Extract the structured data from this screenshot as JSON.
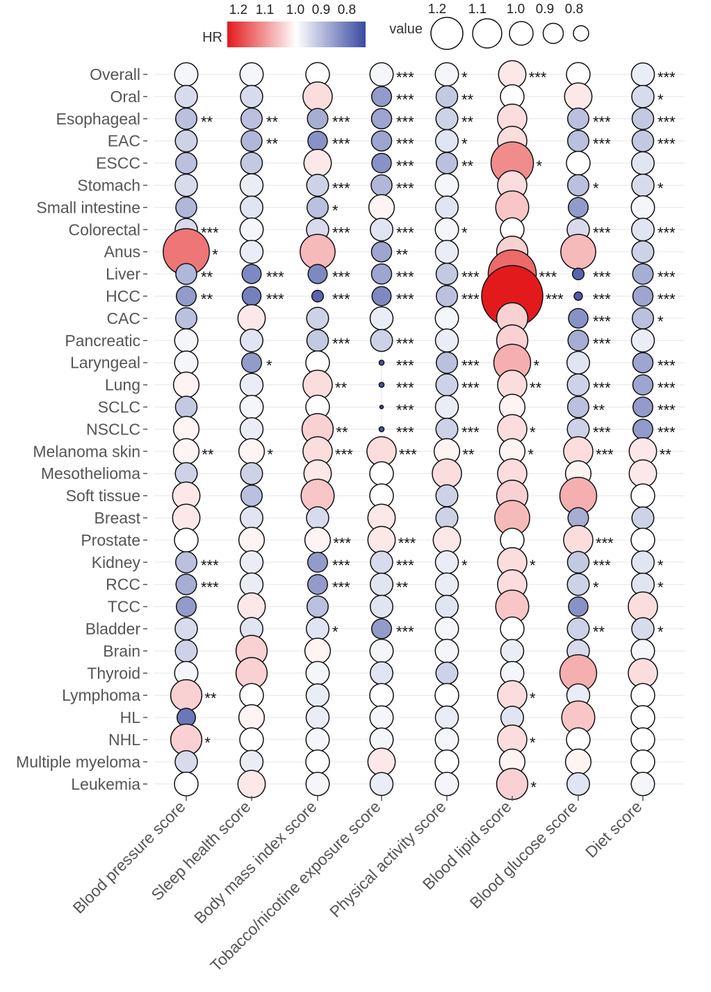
{
  "chart_data": {
    "type": "bubble-heatmap",
    "legend": {
      "color_title": "HR",
      "color_tick_labels": [
        "1.2",
        "1.1",
        "1.0",
        "0.9",
        "0.8"
      ],
      "size_title": "value",
      "size_values": [
        1.2,
        1.1,
        1.0,
        0.9,
        0.8
      ],
      "size_tick_labels": [
        "1.2",
        "1.1",
        "1.0",
        "0.9",
        "0.8"
      ],
      "colors": {
        "high": "#e31a1c",
        "mid": "#ffffff",
        "low": "#3a4aa0"
      }
    },
    "columns": [
      "Blood pressure score",
      "Sleep health score",
      "Body mass index score",
      "Tobacco/nicotine exposure score",
      "Physical activity score",
      "Blood lipid score",
      "Blood glucose score",
      "Diet score"
    ],
    "rows": [
      "Overall",
      "Oral",
      "Esophageal",
      "EAC",
      "ESCC",
      "Stomach",
      "Small intestine",
      "Colorectal",
      "Anus",
      "Liver",
      "HCC",
      "CAC",
      "Pancreatic",
      "Laryngeal",
      "Lung",
      "SCLC",
      "NSCLC",
      "Melanoma skin",
      "Mesothelioma",
      "Soft tissue",
      "Breast",
      "Prostate",
      "Kidney",
      "RCC",
      "TCC",
      "Bladder",
      "Brain",
      "Thyroid",
      "Lymphoma",
      "HL",
      "NHL",
      "Multiple myeloma",
      "Leukemia"
    ],
    "series": [
      {
        "name": "Blood pressure score",
        "hr": [
          0.99,
          0.96,
          0.93,
          0.95,
          0.93,
          0.96,
          0.92,
          0.96,
          1.12,
          0.92,
          0.89,
          0.93,
          0.99,
          0.99,
          1.01,
          0.94,
          1.01,
          1.01,
          0.95,
          1.02,
          1.02,
          1.0,
          0.93,
          0.91,
          0.89,
          0.96,
          0.95,
          0.99,
          1.04,
          0.85,
          1.04,
          0.96,
          1.0
        ],
        "sig": [
          "",
          "",
          "**",
          "",
          "",
          "",
          "",
          "***",
          "*",
          "**",
          "**",
          "",
          "",
          "",
          "",
          "",
          "",
          "**",
          "",
          "",
          "",
          "",
          "***",
          "***",
          "",
          "",
          "",
          "",
          "**",
          "",
          "*",
          "",
          ""
        ]
      },
      {
        "name": "Sleep health score",
        "hr": [
          0.99,
          0.96,
          0.93,
          0.92,
          0.94,
          0.98,
          0.97,
          0.99,
          0.98,
          0.87,
          0.86,
          1.02,
          0.97,
          0.89,
          0.98,
          0.99,
          0.98,
          1.01,
          0.95,
          0.93,
          0.97,
          1.01,
          0.98,
          0.98,
          1.02,
          0.97,
          1.04,
          1.04,
          1.0,
          1.01,
          1.0,
          0.98,
          1.02
        ],
        "sig": [
          "",
          "",
          "**",
          "**",
          "",
          "",
          "",
          "",
          "",
          "***",
          "***",
          "",
          "",
          "*",
          "",
          "",
          "",
          "*",
          "",
          "",
          "",
          "",
          "",
          "",
          "",
          "",
          "",
          "",
          "",
          "",
          "",
          "",
          ""
        ]
      },
      {
        "name": "Body mass index score",
        "hr": [
          1.0,
          1.03,
          0.91,
          0.88,
          1.02,
          0.95,
          0.93,
          0.96,
          1.06,
          0.87,
          0.83,
          0.95,
          0.94,
          1.0,
          1.03,
          1.0,
          1.04,
          1.03,
          1.02,
          1.05,
          0.96,
          1.01,
          0.89,
          0.89,
          0.93,
          0.97,
          1.01,
          0.99,
          0.98,
          0.98,
          0.99,
          1.0,
          0.99
        ],
        "sig": [
          "",
          "",
          "***",
          "***",
          "",
          "***",
          "*",
          "***",
          "",
          "***",
          "***",
          "",
          "***",
          "",
          "**",
          "",
          "**",
          "***",
          "",
          "",
          "",
          "***",
          "***",
          "***",
          "",
          "*",
          "",
          "",
          "",
          "",
          "",
          "",
          ""
        ]
      },
      {
        "name": "Tobacco/nicotine exposure score",
        "hr": [
          0.99,
          0.89,
          0.9,
          0.9,
          0.88,
          0.92,
          1.01,
          0.97,
          0.9,
          0.9,
          0.87,
          0.98,
          0.95,
          0.81,
          0.81,
          0.8,
          0.81,
          1.03,
          1.0,
          1.0,
          1.02,
          1.02,
          0.96,
          0.97,
          0.97,
          0.89,
          0.99,
          0.97,
          1.0,
          0.99,
          0.99,
          1.02,
          0.98
        ],
        "sig": [
          "***",
          "***",
          "***",
          "***",
          "***",
          "***",
          "",
          "***",
          "**",
          "***",
          "***",
          "",
          "***",
          "***",
          "***",
          "***",
          "***",
          "***",
          "",
          "",
          "",
          "***",
          "***",
          "**",
          "",
          "***",
          "",
          "",
          "",
          "",
          "",
          "",
          ""
        ]
      },
      {
        "name": "Physical activity score",
        "hr": [
          0.99,
          0.94,
          0.95,
          0.97,
          0.93,
          0.99,
          0.97,
          0.99,
          0.98,
          0.94,
          0.93,
          0.99,
          0.98,
          0.93,
          0.95,
          0.98,
          0.95,
          1.01,
          1.03,
          0.95,
          0.95,
          1.02,
          0.98,
          0.98,
          0.97,
          0.99,
          0.99,
          0.95,
          1.0,
          0.98,
          0.99,
          1.0,
          0.99
        ],
        "sig": [
          "*",
          "**",
          "**",
          "*",
          "**",
          "",
          "",
          "*",
          "",
          "***",
          "***",
          "",
          "",
          "***",
          "***",
          "",
          "***",
          "**",
          "",
          "",
          "",
          "",
          "*",
          "",
          "",
          "",
          "",
          "",
          "",
          "",
          "",
          "",
          ""
        ]
      },
      {
        "name": "Blood lipid score",
        "hr": [
          1.02,
          1.0,
          1.03,
          1.03,
          1.1,
          1.03,
          1.05,
          1.0,
          1.04,
          1.13,
          1.2,
          1.04,
          1.04,
          1.07,
          1.03,
          1.01,
          1.03,
          1.01,
          1.03,
          1.04,
          1.06,
          1.0,
          1.03,
          1.03,
          1.05,
          1.0,
          0.98,
          0.99,
          1.03,
          0.97,
          1.03,
          1.01,
          1.04
        ],
        "sig": [
          "***",
          "",
          "",
          "",
          "*",
          "",
          "",
          "",
          "",
          "***",
          "***",
          "",
          "",
          "*",
          "**",
          "",
          "*",
          "*",
          "",
          "",
          "",
          "",
          "*",
          "",
          "",
          "",
          "",
          "",
          "*",
          "",
          "*",
          "",
          "*"
        ]
      },
      {
        "name": "Blood glucose score",
        "hr": [
          1.0,
          1.02,
          0.93,
          0.93,
          1.0,
          0.93,
          0.89,
          0.96,
          1.06,
          0.83,
          0.82,
          0.88,
          0.91,
          0.97,
          0.95,
          0.93,
          0.95,
          1.03,
          1.01,
          1.07,
          0.91,
          1.03,
          0.94,
          0.95,
          0.88,
          0.95,
          0.96,
          1.07,
          0.98,
          1.05,
          1.0,
          1.01,
          0.97
        ],
        "sig": [
          "",
          "",
          "***",
          "***",
          "",
          "*",
          "",
          "***",
          "",
          "***",
          "***",
          "***",
          "***",
          "",
          "***",
          "**",
          "***",
          "***",
          "",
          "",
          "",
          "***",
          "***",
          "*",
          "",
          "**",
          "",
          "",
          "",
          "",
          "",
          "",
          ""
        ]
      },
      {
        "name": "Diet score",
        "hr": [
          0.98,
          0.96,
          0.94,
          0.94,
          0.97,
          0.96,
          0.99,
          0.97,
          0.95,
          0.91,
          0.9,
          0.93,
          0.98,
          0.9,
          0.9,
          0.89,
          0.89,
          1.02,
          1.02,
          1.0,
          0.95,
          1.0,
          0.97,
          0.97,
          1.03,
          0.96,
          0.99,
          1.03,
          1.0,
          1.0,
          1.0,
          1.0,
          0.99
        ],
        "sig": [
          "***",
          "*",
          "***",
          "***",
          "",
          "*",
          "",
          "***",
          "",
          "***",
          "***",
          "*",
          "",
          "***",
          "***",
          "***",
          "***",
          "**",
          "",
          "",
          "",
          "",
          "*",
          "*",
          "",
          "*",
          "",
          "",
          "",
          "",
          "",
          "",
          ""
        ]
      }
    ]
  }
}
